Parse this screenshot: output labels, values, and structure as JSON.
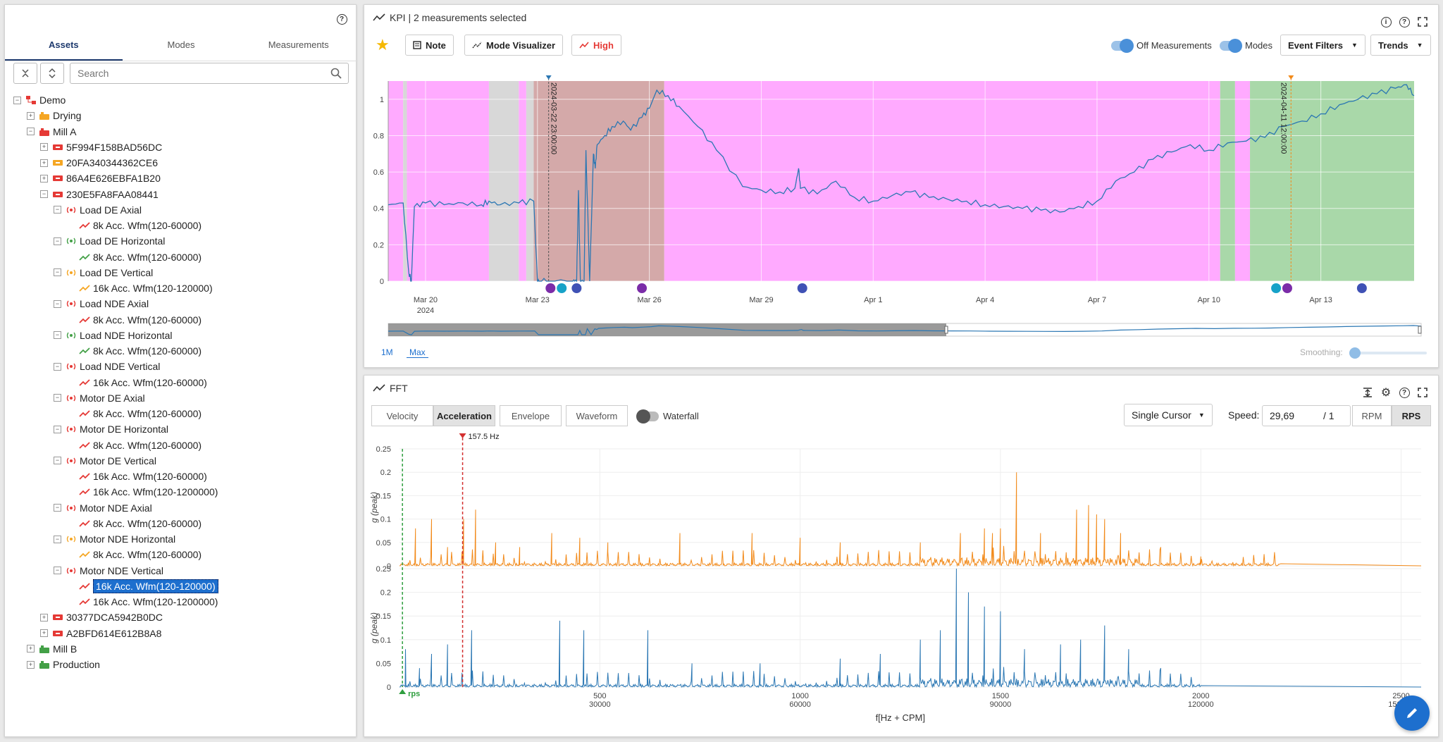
{
  "left": {
    "tabs": [
      "Assets",
      "Modes",
      "Measurements"
    ],
    "search_placeholder": "Search",
    "tree": [
      {
        "label": "Demo",
        "level": 0,
        "exp": "−",
        "icon": "hierarchy-icon",
        "color": "#e53935"
      },
      {
        "label": "Drying",
        "level": 1,
        "exp": "+",
        "icon": "machine-icon",
        "color": "#f5a623"
      },
      {
        "label": "Mill A",
        "level": 1,
        "exp": "−",
        "icon": "machine-icon",
        "color": "#e53935"
      },
      {
        "label": "5F994F158BAD56DC",
        "level": 2,
        "exp": "+",
        "icon": "asset-icon",
        "color": "#e53935"
      },
      {
        "label": "20FA340344362CE6",
        "level": 2,
        "exp": "+",
        "icon": "asset-icon",
        "color": "#f5a623"
      },
      {
        "label": "86A4E626EBFA1B20",
        "level": 2,
        "exp": "+",
        "icon": "asset-icon",
        "color": "#e53935"
      },
      {
        "label": "230E5FA8FAA08441",
        "level": 2,
        "exp": "−",
        "icon": "asset-icon",
        "color": "#e53935"
      },
      {
        "label": "Load DE Axial",
        "level": 3,
        "exp": "−",
        "icon": "sensor-icon",
        "color": "#e53935"
      },
      {
        "label": "8k Acc. Wfm(120-60000)",
        "level": 4,
        "icon": "trend-icon",
        "color": "#e53935"
      },
      {
        "label": "Load DE Horizontal",
        "level": 3,
        "exp": "−",
        "icon": "sensor-icon",
        "color": "#43a047"
      },
      {
        "label": "8k Acc. Wfm(120-60000)",
        "level": 4,
        "icon": "trend-icon",
        "color": "#43a047"
      },
      {
        "label": "Load DE Vertical",
        "level": 3,
        "exp": "−",
        "icon": "sensor-icon",
        "color": "#f5a623"
      },
      {
        "label": "16k Acc. Wfm(120-120000)",
        "level": 4,
        "icon": "trend-icon",
        "color": "#f5a623"
      },
      {
        "label": "Load NDE Axial",
        "level": 3,
        "exp": "−",
        "icon": "sensor-icon",
        "color": "#e53935"
      },
      {
        "label": "8k Acc. Wfm(120-60000)",
        "level": 4,
        "icon": "trend-icon",
        "color": "#e53935"
      },
      {
        "label": "Load NDE Horizontal",
        "level": 3,
        "exp": "−",
        "icon": "sensor-icon",
        "color": "#43a047"
      },
      {
        "label": "8k Acc. Wfm(120-60000)",
        "level": 4,
        "icon": "trend-icon",
        "color": "#43a047"
      },
      {
        "label": "Load NDE Vertical",
        "level": 3,
        "exp": "−",
        "icon": "sensor-icon",
        "color": "#e53935"
      },
      {
        "label": "16k Acc. Wfm(120-60000)",
        "level": 4,
        "icon": "trend-icon",
        "color": "#e53935"
      },
      {
        "label": "Motor DE Axial",
        "level": 3,
        "exp": "−",
        "icon": "sensor-icon",
        "color": "#e53935"
      },
      {
        "label": "8k Acc. Wfm(120-60000)",
        "level": 4,
        "icon": "trend-icon",
        "color": "#e53935"
      },
      {
        "label": "Motor DE Horizontal",
        "level": 3,
        "exp": "−",
        "icon": "sensor-icon",
        "color": "#e53935"
      },
      {
        "label": "8k Acc. Wfm(120-60000)",
        "level": 4,
        "icon": "trend-icon",
        "color": "#e53935"
      },
      {
        "label": "Motor DE Vertical",
        "level": 3,
        "exp": "−",
        "icon": "sensor-icon",
        "color": "#e53935"
      },
      {
        "label": "16k Acc. Wfm(120-60000)",
        "level": 4,
        "icon": "trend-icon",
        "color": "#e53935"
      },
      {
        "label": "16k Acc. Wfm(120-1200000)",
        "level": 4,
        "icon": "trend-icon",
        "color": "#e53935"
      },
      {
        "label": "Motor NDE Axial",
        "level": 3,
        "exp": "−",
        "icon": "sensor-icon",
        "color": "#e53935"
      },
      {
        "label": "8k Acc. Wfm(120-60000)",
        "level": 4,
        "icon": "trend-icon",
        "color": "#e53935"
      },
      {
        "label": "Motor NDE Horizontal",
        "level": 3,
        "exp": "−",
        "icon": "sensor-icon",
        "color": "#f5a623"
      },
      {
        "label": "8k Acc. Wfm(120-60000)",
        "level": 4,
        "icon": "trend-icon",
        "color": "#f5a623"
      },
      {
        "label": "Motor NDE Vertical",
        "level": 3,
        "exp": "−",
        "icon": "sensor-icon",
        "color": "#e53935"
      },
      {
        "label": "16k Acc. Wfm(120-120000)",
        "level": 4,
        "icon": "trend-icon",
        "color": "#e53935",
        "selected": true
      },
      {
        "label": "16k Acc. Wfm(120-1200000)",
        "level": 4,
        "icon": "trend-icon",
        "color": "#e53935"
      },
      {
        "label": "30377DCA5942B0DC",
        "level": 2,
        "exp": "+",
        "icon": "asset-icon",
        "color": "#e53935"
      },
      {
        "label": "A2BFD614E612B8A8",
        "level": 2,
        "exp": "+",
        "icon": "asset-icon",
        "color": "#e53935"
      },
      {
        "label": "Mill B",
        "level": 1,
        "exp": "+",
        "icon": "machine-icon",
        "color": "#43a047"
      },
      {
        "label": "Production",
        "level": 1,
        "exp": "+",
        "icon": "machine-icon",
        "color": "#43a047"
      }
    ]
  },
  "kpi": {
    "title": "KPI | 2 measurements selected",
    "note": "Note",
    "mode_visualizer": "Mode Visualizer",
    "high": "High",
    "off_measurements": "Off Measurements",
    "modes": "Modes",
    "event_filters": "Event Filters",
    "trends": "Trends",
    "range_1m": "1M",
    "range_max": "Max",
    "smoothing": "Smoothing:",
    "cursor1": "2024-03-22 23:00:00",
    "cursor2": "2024-04-11 12:00:00"
  },
  "fft": {
    "title": "FFT",
    "tabs": [
      "Velocity",
      "Acceleration",
      "Envelope",
      "Waveform"
    ],
    "active_tab": "Acceleration",
    "waterfall": "Waterfall",
    "cursor_mode": "Single Cursor",
    "speed_label": "Speed:",
    "speed_value": "29,69",
    "speed_div": "/ 1",
    "rpm": "RPM",
    "rps": "RPS",
    "cursor_hz": "157.5 Hz",
    "rps_marker": "rps",
    "xlabel": "f[Hz + CPM]",
    "ylabel": "g (peak)"
  },
  "chart_data": [
    {
      "type": "line",
      "title": "KPI",
      "x_ticks": [
        "Mar 20",
        "Mar 23",
        "Mar 26",
        "Mar 29",
        "Apr 1",
        "Apr 4",
        "Apr 7",
        "Apr 10",
        "Apr 13"
      ],
      "x_tick_sub": "2024",
      "y_ticks": [
        0,
        0.2,
        0.4,
        0.6,
        0.8,
        1
      ],
      "ylim": [
        0,
        1.1
      ],
      "x_range_days": [
        0,
        27.5
      ],
      "series": [
        {
          "x": [
            0,
            0.4,
            0.55,
            0.62,
            0.7,
            1.0,
            1.5,
            2.0,
            2.5,
            2.7,
            3.0,
            3.5,
            3.9,
            4.0,
            4.05,
            4.3,
            4.95,
            5.05,
            5.1,
            5.15,
            5.25,
            5.3,
            5.4,
            5.5,
            5.55,
            5.6,
            5.8,
            6.0,
            6.3,
            6.5,
            6.8,
            7.0,
            7.2,
            7.5,
            7.8,
            8.3,
            8.8,
            9.5,
            10.0,
            10.5,
            10.9,
            11.0,
            11.05,
            11.5,
            12.0,
            12.5,
            13.0,
            13.5,
            14.0,
            14.5,
            15.0,
            15.5,
            16.0,
            16.5,
            17.0,
            17.5,
            18.0,
            18.5,
            19.0,
            19.5,
            20.0,
            20.5,
            21.0,
            21.5,
            22.0,
            22.5,
            23.0,
            23.5,
            24.0,
            24.5,
            25.0,
            25.5,
            26.0,
            26.5,
            27.0,
            27.3,
            27.5
          ],
          "y": [
            0.42,
            0.43,
            0.05,
            0.0,
            0.41,
            0.43,
            0.42,
            0.43,
            0.42,
            0.44,
            0.42,
            0.43,
            0.44,
            0.0,
            0.0,
            0.0,
            0.0,
            0.0,
            0.5,
            0.0,
            0.0,
            0.72,
            0.0,
            0.7,
            0.62,
            0.75,
            0.8,
            0.85,
            0.88,
            0.83,
            0.9,
            0.95,
            1.05,
            1.02,
            0.96,
            0.85,
            0.72,
            0.52,
            0.5,
            0.49,
            0.51,
            0.62,
            0.51,
            0.48,
            0.55,
            0.46,
            0.44,
            0.47,
            0.49,
            0.46,
            0.45,
            0.44,
            0.42,
            0.41,
            0.4,
            0.39,
            0.38,
            0.41,
            0.44,
            0.55,
            0.6,
            0.67,
            0.71,
            0.75,
            0.72,
            0.76,
            0.77,
            0.79,
            0.85,
            0.88,
            0.92,
            0.97,
            1.0,
            1.03,
            1.06,
            1.08,
            1.02
          ]
        }
      ],
      "background_bands": [
        {
          "from": 0,
          "to": 0.4,
          "color": "#ffaaff"
        },
        {
          "from": 0.4,
          "to": 0.5,
          "color": "#d8d8d8"
        },
        {
          "from": 0.5,
          "to": 2.7,
          "color": "#ffaaff"
        },
        {
          "from": 2.7,
          "to": 3.5,
          "color": "#d8d8d8"
        },
        {
          "from": 3.5,
          "to": 3.7,
          "color": "#ffaaff"
        },
        {
          "from": 3.7,
          "to": 3.9,
          "color": "#d8d8d8"
        },
        {
          "from": 3.9,
          "to": 7.4,
          "color": "#d4a9a9"
        },
        {
          "from": 7.4,
          "to": 22.3,
          "color": "#ffaaff"
        },
        {
          "from": 22.3,
          "to": 22.7,
          "color": "#a9d8a9"
        },
        {
          "from": 22.7,
          "to": 23.1,
          "color": "#ffaaff"
        },
        {
          "from": 23.1,
          "to": 27.5,
          "color": "#a9d8a9"
        }
      ]
    },
    {
      "type": "line",
      "title": "FFT",
      "x_ticks": [
        500,
        1000,
        1500,
        2000,
        2500
      ],
      "x_ticks_cpm": [
        30000,
        60000,
        90000,
        120000,
        150000
      ],
      "xlim": [
        0,
        2550
      ],
      "ylim": [
        0,
        0.25
      ],
      "y_ticks": [
        0,
        0.05,
        0.1,
        0.15,
        0.2,
        0.25
      ],
      "series": [
        {
          "name": "orange",
          "color": "#f28a1a",
          "peaks": [
            [
              40,
              0.08
            ],
            [
              80,
              0.1
            ],
            [
              120,
              0.04
            ],
            [
              160,
              0.1
            ],
            [
              190,
              0.12
            ],
            [
              240,
              0.05
            ],
            [
              300,
              0.04
            ],
            [
              380,
              0.07
            ],
            [
              450,
              0.06
            ],
            [
              520,
              0.05
            ],
            [
              700,
              0.07
            ],
            [
              880,
              0.07
            ],
            [
              1000,
              0.06
            ],
            [
              1100,
              0.05
            ],
            [
              1300,
              0.05
            ],
            [
              1400,
              0.07
            ],
            [
              1460,
              0.08
            ],
            [
              1480,
              0.07
            ],
            [
              1500,
              0.08
            ],
            [
              1540,
              0.2
            ],
            [
              1600,
              0.07
            ],
            [
              1690,
              0.12
            ],
            [
              1720,
              0.13
            ],
            [
              1740,
              0.11
            ],
            [
              1760,
              0.1
            ],
            [
              1800,
              0.07
            ],
            [
              1900,
              0.04
            ],
            [
              2000,
              0.02
            ]
          ]
        },
        {
          "name": "blue",
          "color": "#2b77b3",
          "peaks": [
            [
              15,
              0.08
            ],
            [
              50,
              0.04
            ],
            [
              80,
              0.07
            ],
            [
              120,
              0.09
            ],
            [
              180,
              0.12
            ],
            [
              400,
              0.14
            ],
            [
              460,
              0.12
            ],
            [
              620,
              0.12
            ],
            [
              730,
              0.05
            ],
            [
              900,
              0.05
            ],
            [
              1100,
              0.06
            ],
            [
              1200,
              0.07
            ],
            [
              1300,
              0.1
            ],
            [
              1350,
              0.12
            ],
            [
              1390,
              0.25
            ],
            [
              1420,
              0.2
            ],
            [
              1460,
              0.17
            ],
            [
              1500,
              0.16
            ],
            [
              1560,
              0.08
            ],
            [
              1650,
              0.09
            ],
            [
              1700,
              0.1
            ],
            [
              1760,
              0.13
            ],
            [
              1820,
              0.08
            ],
            [
              1900,
              0.04
            ]
          ]
        }
      ]
    }
  ]
}
